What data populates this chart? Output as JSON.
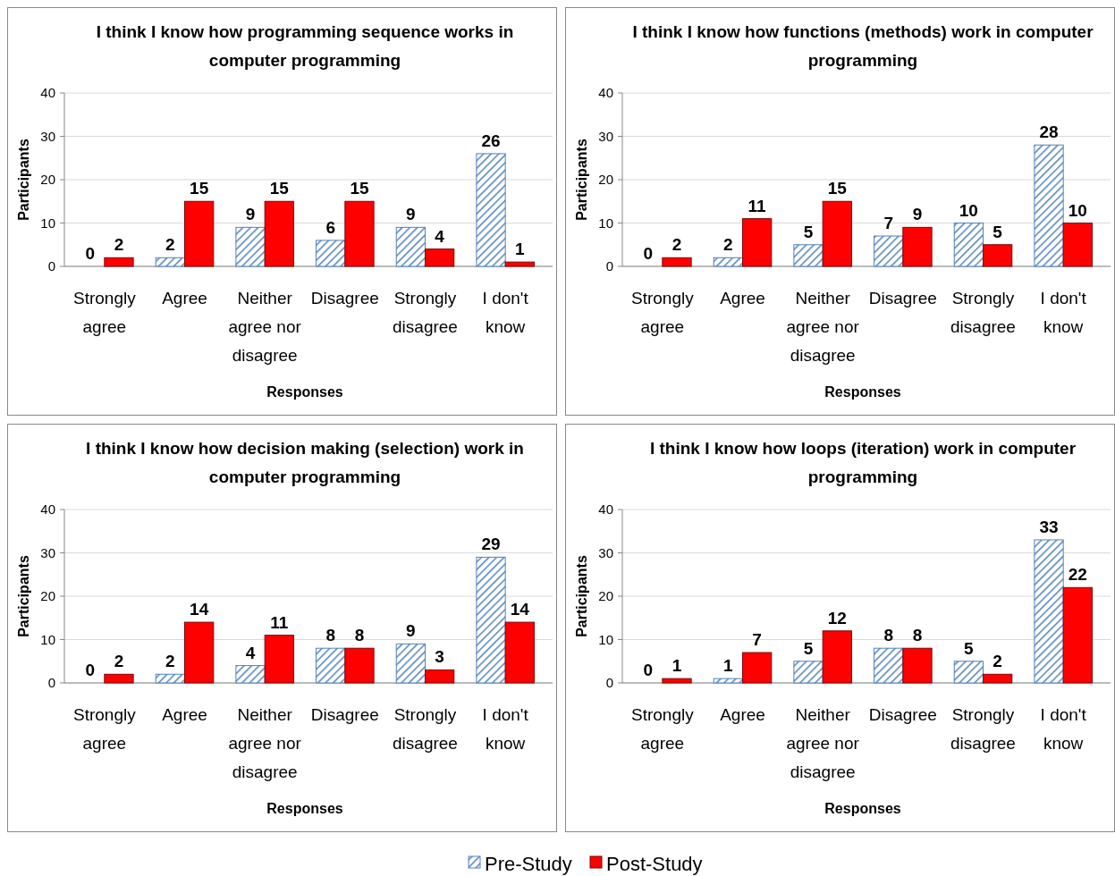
{
  "chart_data": [
    {
      "type": "bar",
      "title": "I think I know how programming sequence works in computer programming",
      "xlabel": "Responses",
      "ylabel": "Participants",
      "categories": [
        "Strongly agree",
        "Agree",
        "Neither agree nor disagree",
        "Disagree",
        "Strongly disagree",
        "I don't know"
      ],
      "series": [
        {
          "color": "#4f81bd",
          "values": [
            0,
            2,
            9,
            6,
            9,
            26
          ]
        },
        {
          "color": "#ff0000",
          "values": [
            2,
            15,
            15,
            15,
            4,
            1
          ]
        }
      ],
      "ylim": [
        0,
        40
      ],
      "yticks": [
        0,
        10,
        20,
        30,
        40
      ],
      "grid": "y",
      "data_labels": true
    },
    {
      "type": "bar",
      "title": "I think I know how functions (methods) work in computer programming",
      "xlabel": "Responses",
      "ylabel": "Participants",
      "categories": [
        "Strongly agree",
        "Agree",
        "Neither agree nor disagree",
        "Disagree",
        "Strongly disagree",
        "I don't know"
      ],
      "series": [
        {
          "color": "#4f81bd",
          "values": [
            0,
            2,
            5,
            7,
            10,
            28
          ]
        },
        {
          "color": "#ff0000",
          "values": [
            2,
            11,
            15,
            9,
            5,
            10
          ]
        }
      ],
      "ylim": [
        0,
        40
      ],
      "yticks": [
        0,
        10,
        20,
        30,
        40
      ],
      "grid": "y",
      "data_labels": true
    },
    {
      "type": "bar",
      "title": "I think I know how decision making (selection) work in computer programming",
      "xlabel": "Responses",
      "ylabel": "Participants",
      "categories": [
        "Strongly agree",
        "Agree",
        "Neither agree nor disagree",
        "Disagree",
        "Strongly disagree",
        "I don't know"
      ],
      "series": [
        {
          "color": "#4f81bd",
          "values": [
            0,
            2,
            4,
            8,
            9,
            29
          ]
        },
        {
          "color": "#ff0000",
          "values": [
            2,
            14,
            11,
            8,
            3,
            14
          ]
        }
      ],
      "ylim": [
        0,
        40
      ],
      "yticks": [
        0,
        10,
        20,
        30,
        40
      ],
      "grid": "y",
      "data_labels": true
    },
    {
      "type": "bar",
      "title": "I think I know how loops (iteration) work in computer programming",
      "xlabel": "Responses",
      "ylabel": "Participants",
      "categories": [
        "Strongly agree",
        "Agree",
        "Neither agree nor disagree",
        "Disagree",
        "Strongly disagree",
        "I don't know"
      ],
      "series": [
        {
          "name": "Pre-Study",
          "color": "#4f81bd",
          "values": [
            0,
            1,
            5,
            8,
            5,
            33
          ]
        },
        {
          "name": "Post-Study",
          "color": "#ff0000",
          "values": [
            1,
            7,
            12,
            8,
            2,
            22
          ]
        }
      ],
      "ylim": [
        0,
        40
      ],
      "yticks": [
        0,
        10,
        20,
        30,
        40
      ],
      "grid": "y",
      "data_labels": true,
      "legend": "bottom"
    }
  ]
}
